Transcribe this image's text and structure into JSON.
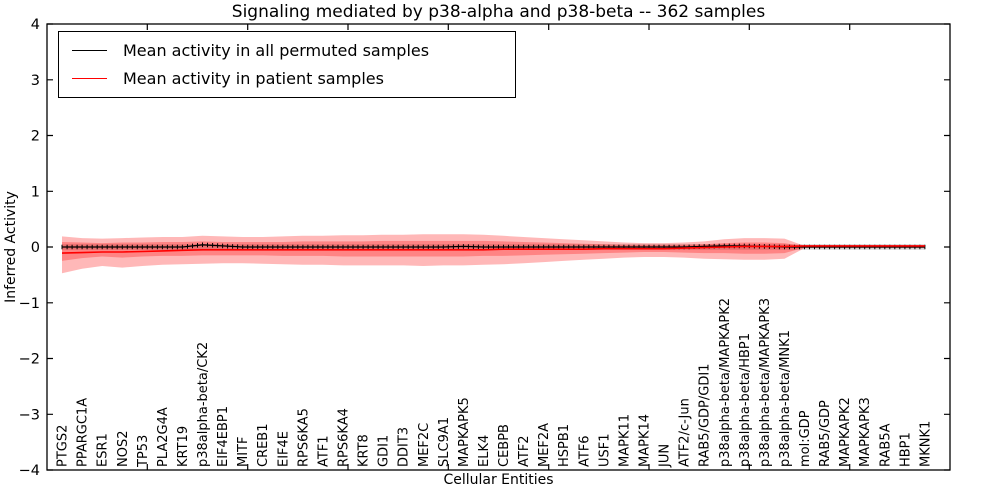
{
  "chart_data": {
    "type": "line",
    "title": "Signaling mediated by p38-alpha and p38-beta -- 362 samples",
    "xlabel": "Cellular Entities",
    "ylabel": "Inferred Activity",
    "ylim": [
      -4,
      4
    ],
    "yticks": [
      -4,
      -3,
      -2,
      -1,
      0,
      1,
      2,
      3,
      4
    ],
    "grid": false,
    "legend_position": "upper left",
    "categories": [
      "PTGS2",
      "PPARGC1A",
      "ESR1",
      "NOS2",
      "TP53",
      "PLA2G4A",
      "KRT19",
      "p38alpha-beta/CK2",
      "EIF4EBP1",
      "MITF",
      "CREB1",
      "EIF4E",
      "RPS6KA5",
      "ATF1",
      "RPS6KA4",
      "KRT8",
      "GDI1",
      "DDIT3",
      "MEF2C",
      "SLC9A1",
      "MAPKAPK5",
      "ELK4",
      "CEBPB",
      "ATF2",
      "MEF2A",
      "HSPB1",
      "ATF6",
      "USF1",
      "MAPK11",
      "MAPK14",
      "JUN",
      "ATF2/c-Jun",
      "RAB5/GDP/GDI1",
      "p38alpha-beta/MAPKAPK2",
      "p38alpha-beta/HBP1",
      "p38alpha-beta/MAPKAPK3",
      "p38alpha-beta/MNK1",
      "mol:GDP",
      "RAB5/GDP",
      "MAPKAPK2",
      "MAPKAPK3",
      "RAB5A",
      "HBP1",
      "MKNK1"
    ],
    "series": [
      {
        "name": "Mean activity in all permuted samples",
        "color": "#000000",
        "values": [
          0,
          0,
          0,
          0,
          0,
          0,
          0,
          0.04,
          0.02,
          0,
          0,
          0,
          0,
          0,
          0,
          0,
          0,
          0,
          0,
          0,
          0.01,
          0,
          0,
          0,
          0,
          0,
          0,
          0,
          0,
          0,
          0,
          0,
          0.01,
          0.02,
          0.02,
          0.01,
          0,
          0,
          0,
          0,
          0,
          0,
          0,
          0
        ]
      },
      {
        "name": "Mean activity in patient samples",
        "color": "#ff0000",
        "values": [
          -0.11,
          -0.1,
          -0.09,
          -0.09,
          -0.08,
          -0.07,
          -0.06,
          -0.05,
          -0.05,
          -0.05,
          -0.05,
          -0.05,
          -0.05,
          -0.05,
          -0.05,
          -0.05,
          -0.05,
          -0.05,
          -0.05,
          -0.05,
          -0.05,
          -0.05,
          -0.04,
          -0.04,
          -0.04,
          -0.04,
          -0.04,
          -0.03,
          -0.03,
          -0.03,
          -0.03,
          -0.02,
          -0.01,
          0,
          0.01,
          0.01,
          0.01,
          0.02,
          0.02,
          0.02,
          0.02,
          0.02,
          0.02,
          0.02
        ]
      }
    ],
    "bands": [
      {
        "name": "permuted-samples-range",
        "color": "#000000",
        "opacity": 0.16,
        "upper": 0.05,
        "lower": -0.05
      },
      {
        "name": "patient-samples-outer-range",
        "color": "#ff0000",
        "opacity": 0.28,
        "upper": [
          0.19,
          0.16,
          0.15,
          0.16,
          0.17,
          0.18,
          0.18,
          0.2,
          0.19,
          0.18,
          0.18,
          0.19,
          0.2,
          0.2,
          0.21,
          0.21,
          0.22,
          0.22,
          0.23,
          0.23,
          0.23,
          0.22,
          0.2,
          0.18,
          0.16,
          0.14,
          0.12,
          0.1,
          0.08,
          0.07,
          0.07,
          0.08,
          0.1,
          0.14,
          0.16,
          0.16,
          0.15,
          0.02,
          0.02,
          0.02,
          0.02,
          0.02,
          0.02,
          0.02
        ],
        "lower": [
          -0.47,
          -0.39,
          -0.34,
          -0.37,
          -0.34,
          -0.32,
          -0.31,
          -0.3,
          -0.29,
          -0.29,
          -0.3,
          -0.31,
          -0.32,
          -0.32,
          -0.33,
          -0.33,
          -0.33,
          -0.33,
          -0.34,
          -0.33,
          -0.33,
          -0.32,
          -0.31,
          -0.29,
          -0.27,
          -0.25,
          -0.23,
          -0.21,
          -0.19,
          -0.18,
          -0.18,
          -0.19,
          -0.21,
          -0.22,
          -0.23,
          -0.23,
          -0.21,
          -0.02,
          -0.02,
          -0.02,
          -0.02,
          -0.02,
          -0.02,
          -0.02
        ]
      },
      {
        "name": "patient-samples-inner-range",
        "color": "#ff0000",
        "opacity": 0.28,
        "upper": [
          0.09,
          0.08,
          0.07,
          0.08,
          0.08,
          0.09,
          0.09,
          0.1,
          0.09,
          0.09,
          0.09,
          0.09,
          0.1,
          0.1,
          0.1,
          0.1,
          0.11,
          0.11,
          0.11,
          0.11,
          0.11,
          0.11,
          0.1,
          0.09,
          0.08,
          0.07,
          0.06,
          0.05,
          0.04,
          0.04,
          0.04,
          0.04,
          0.05,
          0.07,
          0.08,
          0.08,
          0.07,
          0.01,
          0.01,
          0.01,
          0.01,
          0.01,
          0.01,
          0.01
        ],
        "lower": [
          -0.25,
          -0.2,
          -0.17,
          -0.19,
          -0.17,
          -0.16,
          -0.16,
          -0.15,
          -0.15,
          -0.15,
          -0.15,
          -0.16,
          -0.16,
          -0.16,
          -0.17,
          -0.17,
          -0.17,
          -0.17,
          -0.17,
          -0.17,
          -0.17,
          -0.16,
          -0.16,
          -0.15,
          -0.14,
          -0.13,
          -0.12,
          -0.11,
          -0.1,
          -0.09,
          -0.09,
          -0.1,
          -0.11,
          -0.11,
          -0.12,
          -0.12,
          -0.11,
          -0.01,
          -0.01,
          -0.01,
          -0.01,
          -0.01,
          -0.01,
          -0.01
        ]
      }
    ]
  }
}
